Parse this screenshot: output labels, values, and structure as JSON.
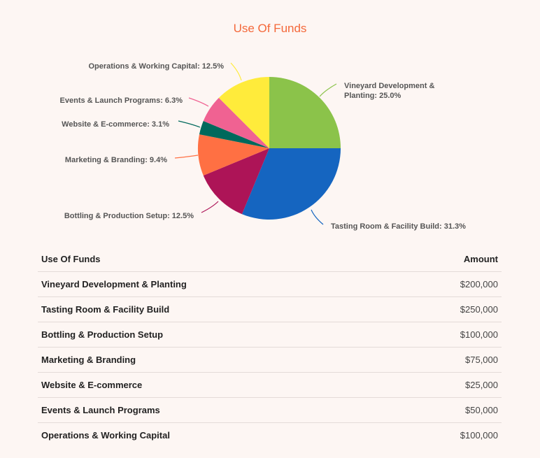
{
  "chart_data": {
    "type": "pie",
    "title": "Use Of Funds",
    "slices": [
      {
        "label": "Vineyard Development & Planting",
        "value": 200000,
        "percent": "25.0%",
        "color": "#8bc34a"
      },
      {
        "label": "Tasting Room & Facility Build",
        "value": 250000,
        "percent": "31.3%",
        "color": "#1565c0"
      },
      {
        "label": "Bottling & Production Setup",
        "value": 100000,
        "percent": "12.5%",
        "color": "#ad1457"
      },
      {
        "label": "Marketing & Branding",
        "value": 75000,
        "percent": "9.4%",
        "color": "#ff7043"
      },
      {
        "label": "Website & E-commerce",
        "value": 25000,
        "percent": "3.1%",
        "color": "#00695c"
      },
      {
        "label": "Events & Launch Programs",
        "value": 50000,
        "percent": "6.3%",
        "color": "#f06292"
      },
      {
        "label": "Operations & Working Capital",
        "value": 100000,
        "percent": "12.5%",
        "color": "#ffeb3b"
      }
    ]
  },
  "table": {
    "headers": [
      "Use Of Funds",
      "Amount"
    ],
    "rows": [
      [
        "Vineyard Development & Planting",
        "$200,000"
      ],
      [
        "Tasting Room & Facility Build",
        "$250,000"
      ],
      [
        "Bottling & Production Setup",
        "$100,000"
      ],
      [
        "Marketing & Branding",
        "$75,000"
      ],
      [
        "Website & E-commerce",
        "$25,000"
      ],
      [
        "Events & Launch Programs",
        "$50,000"
      ],
      [
        "Operations & Working Capital",
        "$100,000"
      ]
    ]
  }
}
